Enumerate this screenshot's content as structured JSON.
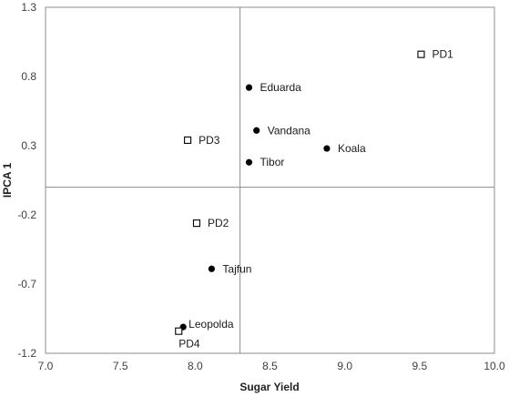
{
  "chart_data": {
    "type": "scatter",
    "title": "",
    "xlabel": "Sugar Yield",
    "ylabel": "IPCA 1",
    "xlim": [
      7.0,
      10.0
    ],
    "ylim": [
      -1.2,
      1.3
    ],
    "xticks": [
      "7.0",
      "7.5",
      "8.0",
      "8.5",
      "9.0",
      "9.5",
      "10.0"
    ],
    "yticks": [
      "1.3",
      "0.8",
      "0.3",
      "-0.2",
      "-0.7",
      "-1.2"
    ],
    "reference_lines": {
      "x": 8.3,
      "y": 0.0
    },
    "grid": false,
    "legend": "none",
    "series": [
      {
        "marker": "filled-circle",
        "color": "#000000",
        "points": [
          {
            "label": "Eduarda",
            "x": 8.36,
            "y": 0.72
          },
          {
            "label": "Vandana",
            "x": 8.41,
            "y": 0.41
          },
          {
            "label": "Koala",
            "x": 8.88,
            "y": 0.28
          },
          {
            "label": "Tibor",
            "x": 8.36,
            "y": 0.18
          },
          {
            "label": "Tajfun",
            "x": 8.11,
            "y": -0.59
          },
          {
            "label": "Leopolda",
            "x": 7.92,
            "y": -1.01
          }
        ]
      },
      {
        "marker": "open-square",
        "color": "#000000",
        "points": [
          {
            "label": "PD1",
            "x": 9.51,
            "y": 0.96
          },
          {
            "label": "PD3",
            "x": 7.95,
            "y": 0.34
          },
          {
            "label": "PD2",
            "x": 8.01,
            "y": -0.26
          },
          {
            "label": "PD4",
            "x": 7.89,
            "y": -1.04
          }
        ]
      }
    ]
  }
}
